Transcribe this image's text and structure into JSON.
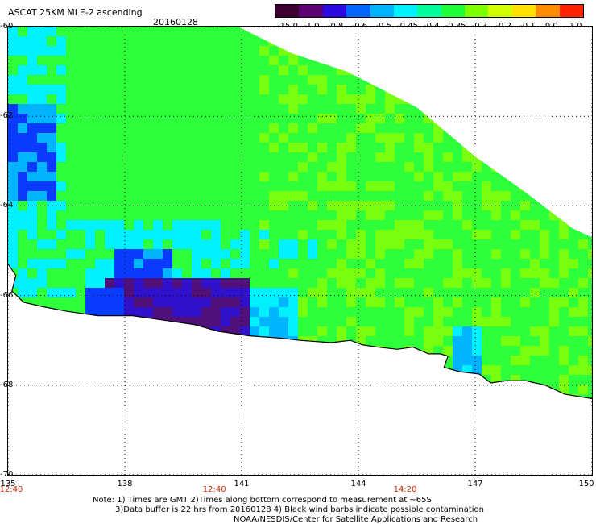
{
  "header": {
    "title": "ASCAT 25KM MLE-2 ascending",
    "date": "20160128"
  },
  "colorbar": {
    "ticks": [
      "-15.0",
      "-1.0",
      "-0.8",
      "-0.6",
      "-0.5",
      "-0.45",
      "-0.4",
      "-0.35",
      "-0.3",
      "-0.2",
      "-0.1",
      "0.0",
      "1.0"
    ],
    "colors": [
      "#3c0030",
      "#5a0070",
      "#2a0ae0",
      "#0066ff",
      "#00b4ff",
      "#00f0ff",
      "#00ff9c",
      "#1eff3c",
      "#7cff00",
      "#d2ff00",
      "#ffe000",
      "#ff8c00",
      "#ff2400"
    ]
  },
  "map": {
    "lat_labels": [
      "-60",
      "-62",
      "-64",
      "-66",
      "-68",
      "-70"
    ],
    "lat_values": [
      -60,
      -62,
      -64,
      -66,
      -68,
      -70
    ],
    "lon_labels": [
      "135",
      "138",
      "141",
      "144",
      "147",
      "150"
    ],
    "lon_values": [
      135,
      138,
      141,
      144,
      147,
      150
    ],
    "time_labels": [
      "12:40",
      "12:40",
      "14:20"
    ],
    "time_lons": [
      135,
      140.3,
      145.2
    ],
    "lon_range": [
      135,
      150
    ],
    "lat_range": [
      -70,
      -60
    ],
    "colors": {
      "green": "#2dff3a",
      "lime": "#78ff10",
      "cyan": "#00f0ff",
      "lightblue": "#00b4ff",
      "blue": "#0a3cff",
      "indigo": "#3010c8",
      "purple": "#50107a"
    }
  },
  "notes": {
    "line1": "Note: 1) Times are GMT 2)Times along bottom correspond to measurement at ~65S",
    "line2": "3)Data buffer is 22 hrs from 20160128 4) Black wind barbs indicate possible contamination",
    "line3": "NOAA/NESDIS/Center for Satellite Applications and Research"
  }
}
